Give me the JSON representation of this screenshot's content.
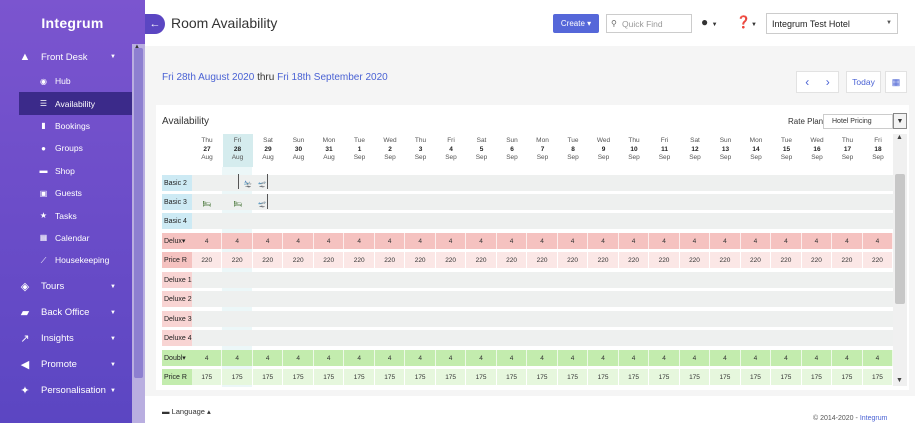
{
  "sidebar": {
    "brand": "Integrum",
    "sections": [
      {
        "label": "Front Desk",
        "icon": "bell-icon",
        "expanded": true
      },
      {
        "label": "Tours",
        "icon": "map-icon"
      },
      {
        "label": "Back Office",
        "icon": "briefcase-icon"
      },
      {
        "label": "Insights",
        "icon": "chart-icon"
      },
      {
        "label": "Promote",
        "icon": "megaphone-icon"
      },
      {
        "label": "Personalisation",
        "icon": "sparkle-icon"
      }
    ],
    "front_desk_items": [
      {
        "label": "Hub",
        "icon": "dashboard-icon"
      },
      {
        "label": "Availability",
        "icon": "list-icon",
        "active": true
      },
      {
        "label": "Bookings",
        "icon": "book-icon"
      },
      {
        "label": "Groups",
        "icon": "group-icon"
      },
      {
        "label": "Shop",
        "icon": "cart-icon"
      },
      {
        "label": "Guests",
        "icon": "id-card-icon"
      },
      {
        "label": "Tasks",
        "icon": "star-icon"
      },
      {
        "label": "Calendar",
        "icon": "calendar-icon"
      },
      {
        "label": "Housekeeping",
        "icon": "broom-icon"
      }
    ]
  },
  "header": {
    "title": "Room Availability",
    "create_label": "Create ▾",
    "quickfind_placeholder": "Quick Find",
    "hotel": "Integrum Test Hotel"
  },
  "range": {
    "start": "Fri 28th August 2020",
    "thru": " thru ",
    "end": "Fri 18th September 2020"
  },
  "controls": {
    "today": "Today"
  },
  "availability": {
    "title": "Availability",
    "rate_plan_label": "Rate Plan",
    "rate_plan_value": "Hotel Pricing"
  },
  "days": [
    {
      "dow": "Thu",
      "day": "27",
      "mon": "Aug"
    },
    {
      "dow": "Fri",
      "day": "28",
      "mon": "Aug",
      "selected": true
    },
    {
      "dow": "Sat",
      "day": "29",
      "mon": "Aug"
    },
    {
      "dow": "Sun",
      "day": "30",
      "mon": "Aug"
    },
    {
      "dow": "Mon",
      "day": "31",
      "mon": "Aug"
    },
    {
      "dow": "Tue",
      "day": "1",
      "mon": "Sep"
    },
    {
      "dow": "Wed",
      "day": "2",
      "mon": "Sep"
    },
    {
      "dow": "Thu",
      "day": "3",
      "mon": "Sep"
    },
    {
      "dow": "Fri",
      "day": "4",
      "mon": "Sep"
    },
    {
      "dow": "Sat",
      "day": "5",
      "mon": "Sep"
    },
    {
      "dow": "Sun",
      "day": "6",
      "mon": "Sep"
    },
    {
      "dow": "Mon",
      "day": "7",
      "mon": "Sep"
    },
    {
      "dow": "Tue",
      "day": "8",
      "mon": "Sep"
    },
    {
      "dow": "Wed",
      "day": "9",
      "mon": "Sep"
    },
    {
      "dow": "Thu",
      "day": "10",
      "mon": "Sep"
    },
    {
      "dow": "Fri",
      "day": "11",
      "mon": "Sep"
    },
    {
      "dow": "Sat",
      "day": "12",
      "mon": "Sep"
    },
    {
      "dow": "Sun",
      "day": "13",
      "mon": "Sep"
    },
    {
      "dow": "Mon",
      "day": "14",
      "mon": "Sep"
    },
    {
      "dow": "Tue",
      "day": "15",
      "mon": "Sep"
    },
    {
      "dow": "Wed",
      "day": "16",
      "mon": "Sep"
    },
    {
      "dow": "Thu",
      "day": "17",
      "mon": "Sep"
    },
    {
      "dow": "Fri",
      "day": "18",
      "mon": "Sep"
    }
  ],
  "rows": [
    {
      "label": "Basic 2",
      "kind": "basic"
    },
    {
      "label": "Basic 3",
      "kind": "basic"
    },
    {
      "label": "Basic 4",
      "kind": "basic"
    },
    {
      "label": "Delux▾",
      "kind": "deluxe-alloc",
      "value": "4"
    },
    {
      "label": "Price R",
      "kind": "deluxe-price",
      "value": "220"
    },
    {
      "label": "Deluxe 1",
      "kind": "deluxe-room"
    },
    {
      "label": "Deluxe 2",
      "kind": "deluxe-room"
    },
    {
      "label": "Deluxe 3",
      "kind": "deluxe-room"
    },
    {
      "label": "Deluxe 4",
      "kind": "deluxe-room"
    },
    {
      "label": "Doubl▾",
      "kind": "double-alloc",
      "value": "4"
    },
    {
      "label": "Price R",
      "kind": "double-price",
      "value": "175"
    }
  ],
  "footer": {
    "language": "Language ▴",
    "copyright": "© 2014-2020 - ",
    "copyright_link": "Integrum"
  }
}
